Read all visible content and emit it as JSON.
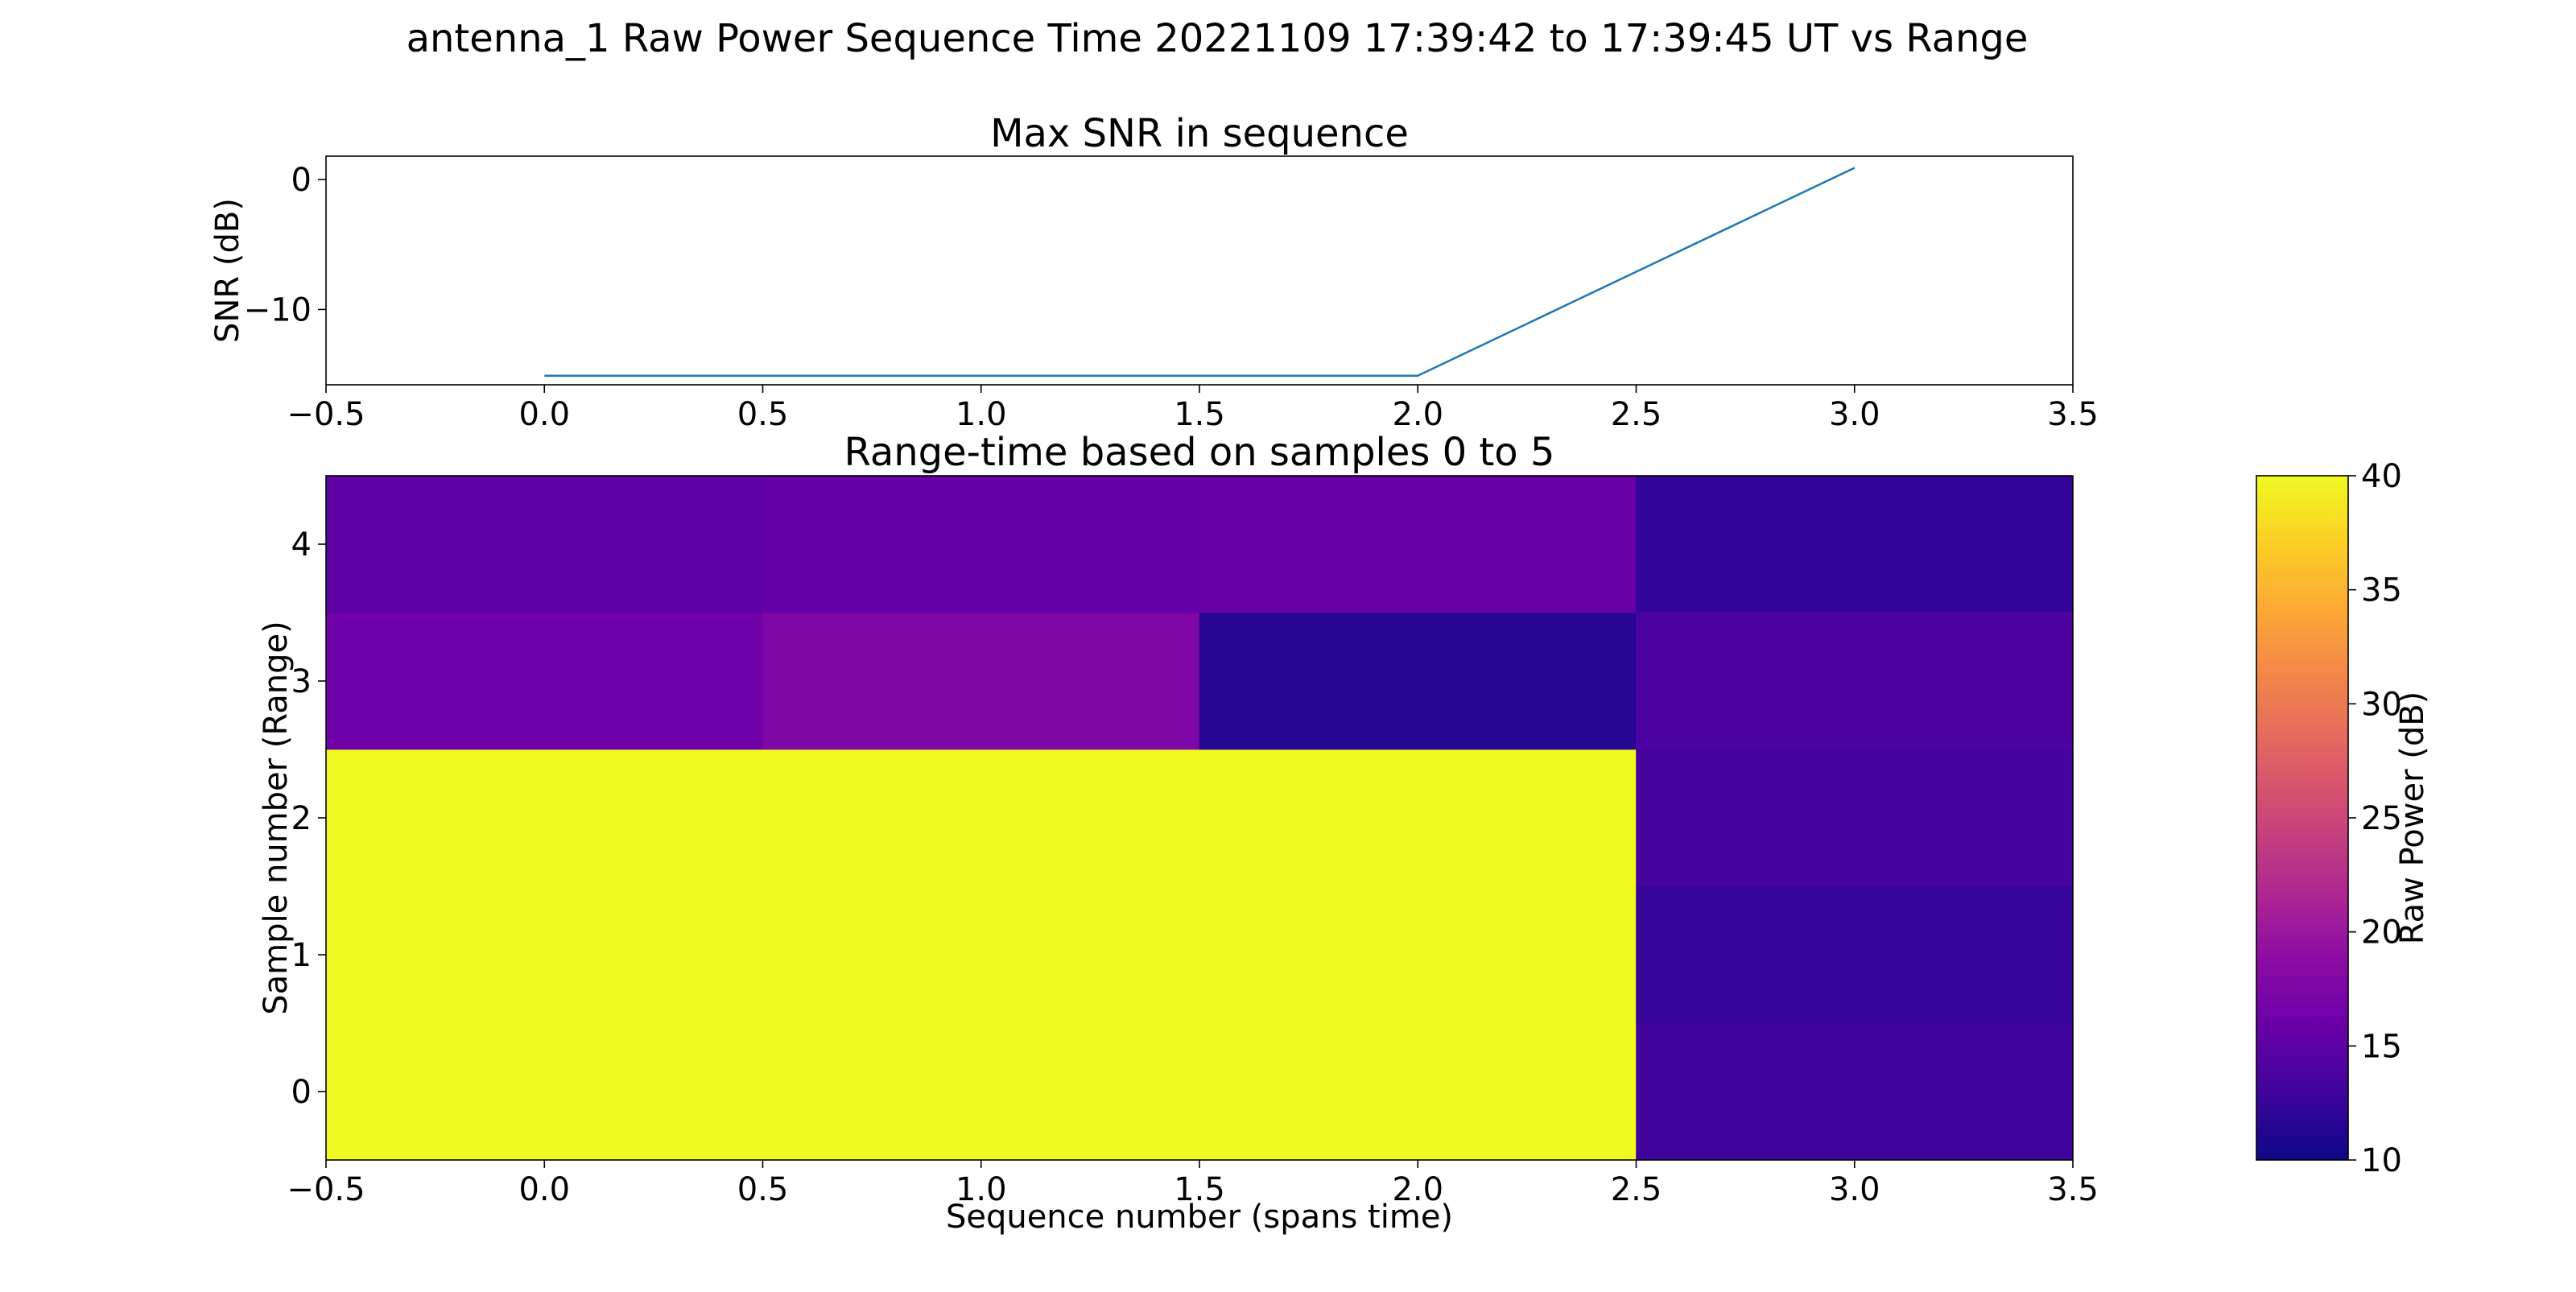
{
  "figure": {
    "suptitle": "antenna_1 Raw Power Sequence Time 20221109 17:39:42 to 17:39:45 UT vs Range"
  },
  "chart_data": [
    {
      "type": "line",
      "title": "Max SNR in sequence",
      "xlabel": "",
      "ylabel": "SNR (dB)",
      "xlim": [
        -0.5,
        3.5
      ],
      "ylim": [
        -15.8,
        1.8
      ],
      "xticks": [
        -0.5,
        0.0,
        0.5,
        1.0,
        1.5,
        2.0,
        2.5,
        3.0,
        3.5
      ],
      "xtick_labels": [
        "−0.5",
        "0.0",
        "0.5",
        "1.0",
        "1.5",
        "2.0",
        "2.5",
        "3.0",
        "3.5"
      ],
      "yticks": [
        0,
        -10
      ],
      "ytick_labels": [
        "0",
        "−10"
      ],
      "grid": false,
      "series": [
        {
          "x": [
            0,
            1,
            2,
            3
          ],
          "y": [
            -15.1,
            -15.1,
            -15.1,
            0.9
          ],
          "color": "#1f77b4"
        }
      ]
    },
    {
      "type": "heatmap",
      "title": "Range-time based on samples 0 to 5",
      "xlabel": "Sequence number (spans time)",
      "ylabel": "Sample number (Range)",
      "xlim": [
        -0.5,
        3.5
      ],
      "ylim": [
        -0.5,
        4.5
      ],
      "xticks": [
        -0.5,
        0.0,
        0.5,
        1.0,
        1.5,
        2.0,
        2.5,
        3.0,
        3.5
      ],
      "xtick_labels": [
        "−0.5",
        "0.0",
        "0.5",
        "1.0",
        "1.5",
        "2.0",
        "2.5",
        "3.0",
        "3.5"
      ],
      "yticks": [
        0,
        1,
        2,
        3,
        4
      ],
      "ytick_labels": [
        "0",
        "1",
        "2",
        "3",
        "4"
      ],
      "colormap": "plasma",
      "cells": [
        {
          "x0": -0.5,
          "x1": 2.5,
          "y0": -0.5,
          "y1": 2.5,
          "value": 40
        },
        {
          "x0": -0.5,
          "x1": 0.5,
          "y0": 2.5,
          "y1": 3.5,
          "value": 16.3
        },
        {
          "x0": 0.5,
          "x1": 1.5,
          "y0": 2.5,
          "y1": 3.5,
          "value": 17.6
        },
        {
          "x0": 1.5,
          "x1": 2.5,
          "y0": 2.5,
          "y1": 3.5,
          "value": 11.5
        },
        {
          "x0": -0.5,
          "x1": 0.5,
          "y0": 3.5,
          "y1": 4.5,
          "value": 15.1
        },
        {
          "x0": 0.5,
          "x1": 1.5,
          "y0": 3.5,
          "y1": 4.5,
          "value": 15.5
        },
        {
          "x0": 1.5,
          "x1": 2.5,
          "y0": 3.5,
          "y1": 4.5,
          "value": 15.8
        },
        {
          "x0": 2.5,
          "x1": 3.5,
          "y0": 3.5,
          "y1": 4.5,
          "value": 12.2
        },
        {
          "x0": 2.5,
          "x1": 3.5,
          "y0": 2.5,
          "y1": 3.5,
          "value": 13.9
        },
        {
          "x0": 2.5,
          "x1": 3.5,
          "y0": 1.5,
          "y1": 2.5,
          "value": 13.3
        },
        {
          "x0": 2.5,
          "x1": 3.5,
          "y0": 0.5,
          "y1": 1.5,
          "value": 12.5
        },
        {
          "x0": 2.5,
          "x1": 3.5,
          "y0": -0.5,
          "y1": 0.5,
          "value": 12.8
        }
      ],
      "colorbar": {
        "label": "Raw Power (dB)",
        "range": [
          10,
          40
        ],
        "ticks": [
          10,
          15,
          20,
          25,
          30,
          35,
          40
        ],
        "tick_labels": [
          "10",
          "15",
          "20",
          "25",
          "30",
          "35",
          "40"
        ]
      }
    }
  ]
}
